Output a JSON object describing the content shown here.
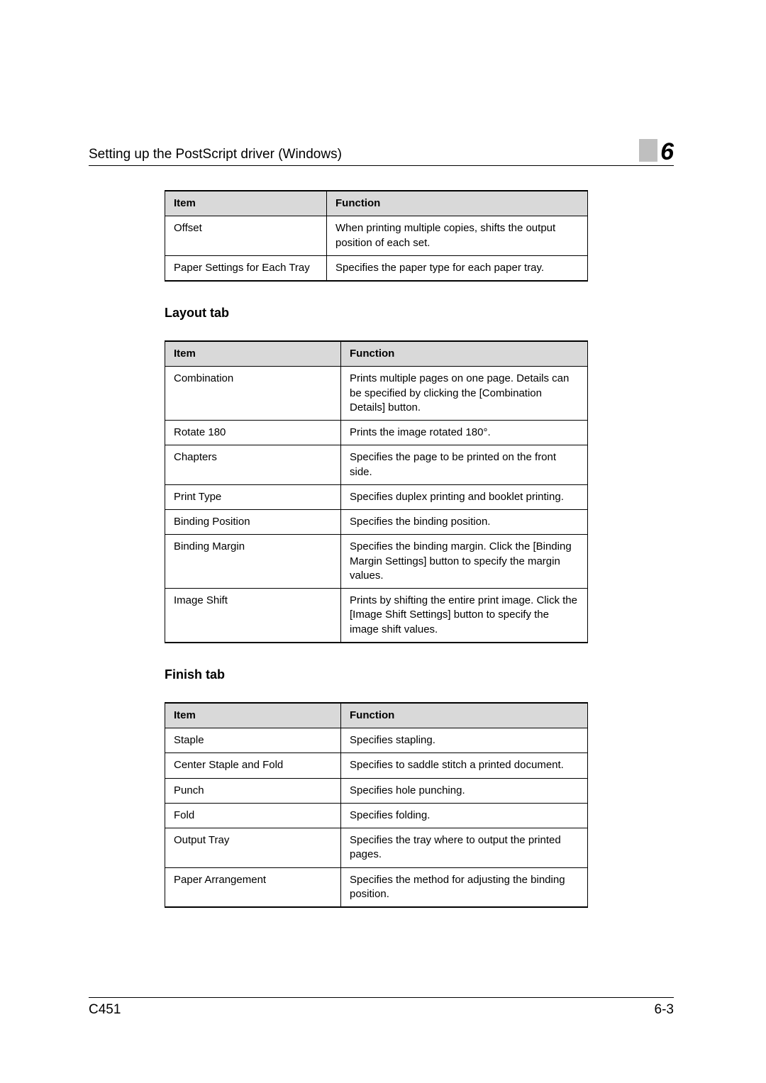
{
  "header": {
    "title": "Setting up the PostScript driver (Windows)",
    "chapter": "6"
  },
  "table1": {
    "columns": [
      "Item",
      "Function"
    ],
    "rows": [
      [
        "Offset",
        "When printing multiple copies, shifts the output position of each set."
      ],
      [
        "Paper Settings for Each Tray",
        "Specifies the paper type for each paper tray."
      ]
    ]
  },
  "heading_layout": "Layout tab",
  "table2": {
    "columns": [
      "Item",
      "Function"
    ],
    "rows": [
      [
        "Combination",
        "Prints multiple pages on one page. Details can be specified by clicking the [Combination Details] button."
      ],
      [
        "Rotate 180",
        "Prints the image rotated 180°."
      ],
      [
        "Chapters",
        "Specifies the page to be printed on the front side."
      ],
      [
        "Print Type",
        "Specifies duplex printing and booklet printing."
      ],
      [
        "Binding Position",
        "Specifies the binding position."
      ],
      [
        "Binding Margin",
        "Specifies the binding margin. Click the [Binding Margin Settings] button to specify the margin values."
      ],
      [
        "Image Shift",
        "Prints by shifting the entire print image. Click the [Image Shift Settings] button to specify the image shift values."
      ]
    ]
  },
  "heading_finish": "Finish tab",
  "table3": {
    "columns": [
      "Item",
      "Function"
    ],
    "rows": [
      [
        "Staple",
        "Specifies stapling."
      ],
      [
        "Center Staple and Fold",
        "Specifies to saddle stitch a printed document."
      ],
      [
        "Punch",
        "Specifies hole punching."
      ],
      [
        "Fold",
        "Specifies folding."
      ],
      [
        "Output Tray",
        "Specifies the tray where to output the printed pages."
      ],
      [
        "Paper Arrangement",
        "Specifies the method for adjusting the binding position."
      ]
    ]
  },
  "footer": {
    "left": "C451",
    "right": "6-3"
  }
}
